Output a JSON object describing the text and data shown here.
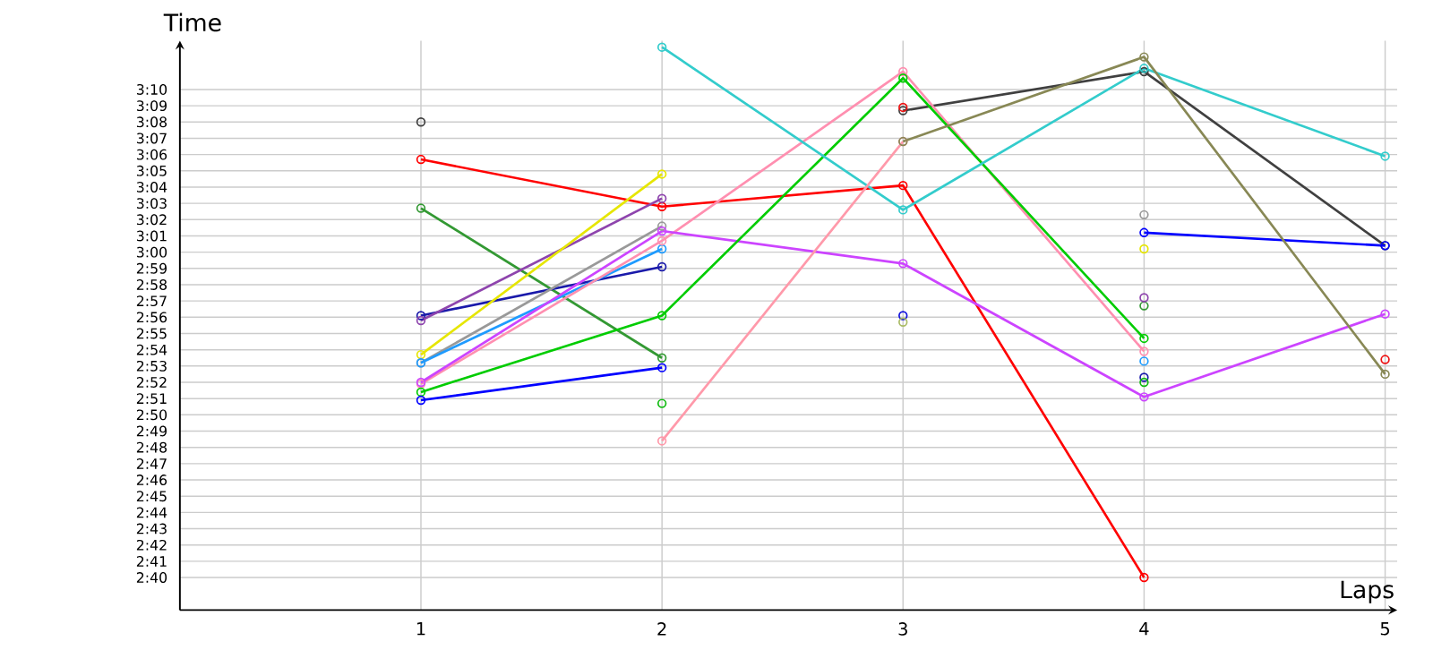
{
  "chart_data": {
    "type": "line",
    "xlabel": "Laps",
    "ylabel": "Time",
    "x": [
      1,
      2,
      3,
      4,
      5
    ],
    "xlim": [
      0,
      5.05
    ],
    "xticks": [
      1,
      2,
      3,
      4,
      5
    ],
    "ylim": [
      158,
      193
    ],
    "yticks": [
      {
        "value": 160,
        "label": "2:40"
      },
      {
        "value": 161,
        "label": "2:41"
      },
      {
        "value": 162,
        "label": "2:42"
      },
      {
        "value": 163,
        "label": "2:43"
      },
      {
        "value": 164,
        "label": "2:44"
      },
      {
        "value": 165,
        "label": "2:45"
      },
      {
        "value": 166,
        "label": "2:46"
      },
      {
        "value": 167,
        "label": "2:47"
      },
      {
        "value": 168,
        "label": "2:48"
      },
      {
        "value": 169,
        "label": "2:49"
      },
      {
        "value": 170,
        "label": "2:50"
      },
      {
        "value": 171,
        "label": "2:51"
      },
      {
        "value": 172,
        "label": "2:52"
      },
      {
        "value": 173,
        "label": "2:53"
      },
      {
        "value": 174,
        "label": "2:54"
      },
      {
        "value": 175,
        "label": "2:55"
      },
      {
        "value": 176,
        "label": "2:56"
      },
      {
        "value": 177,
        "label": "2:57"
      },
      {
        "value": 178,
        "label": "2:58"
      },
      {
        "value": 179,
        "label": "2:59"
      },
      {
        "value": 180,
        "label": "3:00"
      },
      {
        "value": 181,
        "label": "3:01"
      },
      {
        "value": 182,
        "label": "3:02"
      },
      {
        "value": 183,
        "label": "3:03"
      },
      {
        "value": 184,
        "label": "3:04"
      },
      {
        "value": 185,
        "label": "3:05"
      },
      {
        "value": 186,
        "label": "3:06"
      },
      {
        "value": 187,
        "label": "3:07"
      },
      {
        "value": 188,
        "label": "3:08"
      },
      {
        "value": 189,
        "label": "3:09"
      },
      {
        "value": 190,
        "label": "3:10"
      }
    ],
    "grid": true,
    "marker": "circle",
    "line_style": "solid",
    "series": [
      {
        "color": "#404040",
        "values": [
          188,
          null,
          188.7,
          191.1,
          180.4
        ]
      },
      {
        "color": "#ff0000",
        "values": [
          185.7,
          182.8,
          184.1,
          160,
          null
        ]
      },
      {
        "color": "#339933",
        "values": [
          182.7,
          173.5,
          null,
          176.7,
          null
        ]
      },
      {
        "color": "#1a1aaa",
        "values": [
          176.1,
          179.1,
          null,
          172.3,
          null
        ]
      },
      {
        "color": "#8e44ad",
        "values": [
          175.8,
          183.3,
          null,
          177.2,
          null
        ]
      },
      {
        "color": "#e6e600",
        "values": [
          173.7,
          184.8,
          null,
          180.2,
          null
        ]
      },
      {
        "color": "#999999",
        "values": [
          173.2,
          181.6,
          null,
          182.3,
          null
        ]
      },
      {
        "color": "#1e9bff",
        "values": [
          173.2,
          180.2,
          null,
          173.3,
          null
        ]
      },
      {
        "color": "#ff8fb0",
        "values": [
          171.9,
          180.7,
          191.1,
          173.9,
          null
        ]
      },
      {
        "color": "#cc44ff",
        "values": [
          172,
          181.3,
          179.3,
          171.1,
          176.2
        ]
      },
      {
        "color": "#00cc00",
        "values": [
          171.4,
          176.1,
          190.7,
          174.7,
          null
        ]
      },
      {
        "color": "#0000ff",
        "values": [
          170.9,
          172.9,
          null,
          181.2,
          180.4
        ]
      },
      {
        "color": "#33cccc",
        "values": [
          null,
          192.6,
          182.6,
          191.3,
          185.9
        ]
      },
      {
        "color": "#11bb11",
        "type": "scatter",
        "values": [
          null,
          170.7,
          null,
          172,
          null
        ]
      },
      {
        "color": "#ff99aa",
        "values": [
          null,
          168.4,
          186.8,
          null,
          null
        ]
      },
      {
        "color": "#ee1111",
        "type": "scatter",
        "values": [
          null,
          null,
          188.9,
          null,
          173.4
        ]
      },
      {
        "color": "#888855",
        "values": [
          null,
          null,
          186.8,
          192,
          172.5
        ]
      },
      {
        "color": "#1111dd",
        "values": [
          null,
          null,
          176.1,
          null,
          null
        ]
      },
      {
        "color": "#aabb66",
        "values": [
          null,
          null,
          175.7,
          null,
          null
        ]
      }
    ]
  }
}
